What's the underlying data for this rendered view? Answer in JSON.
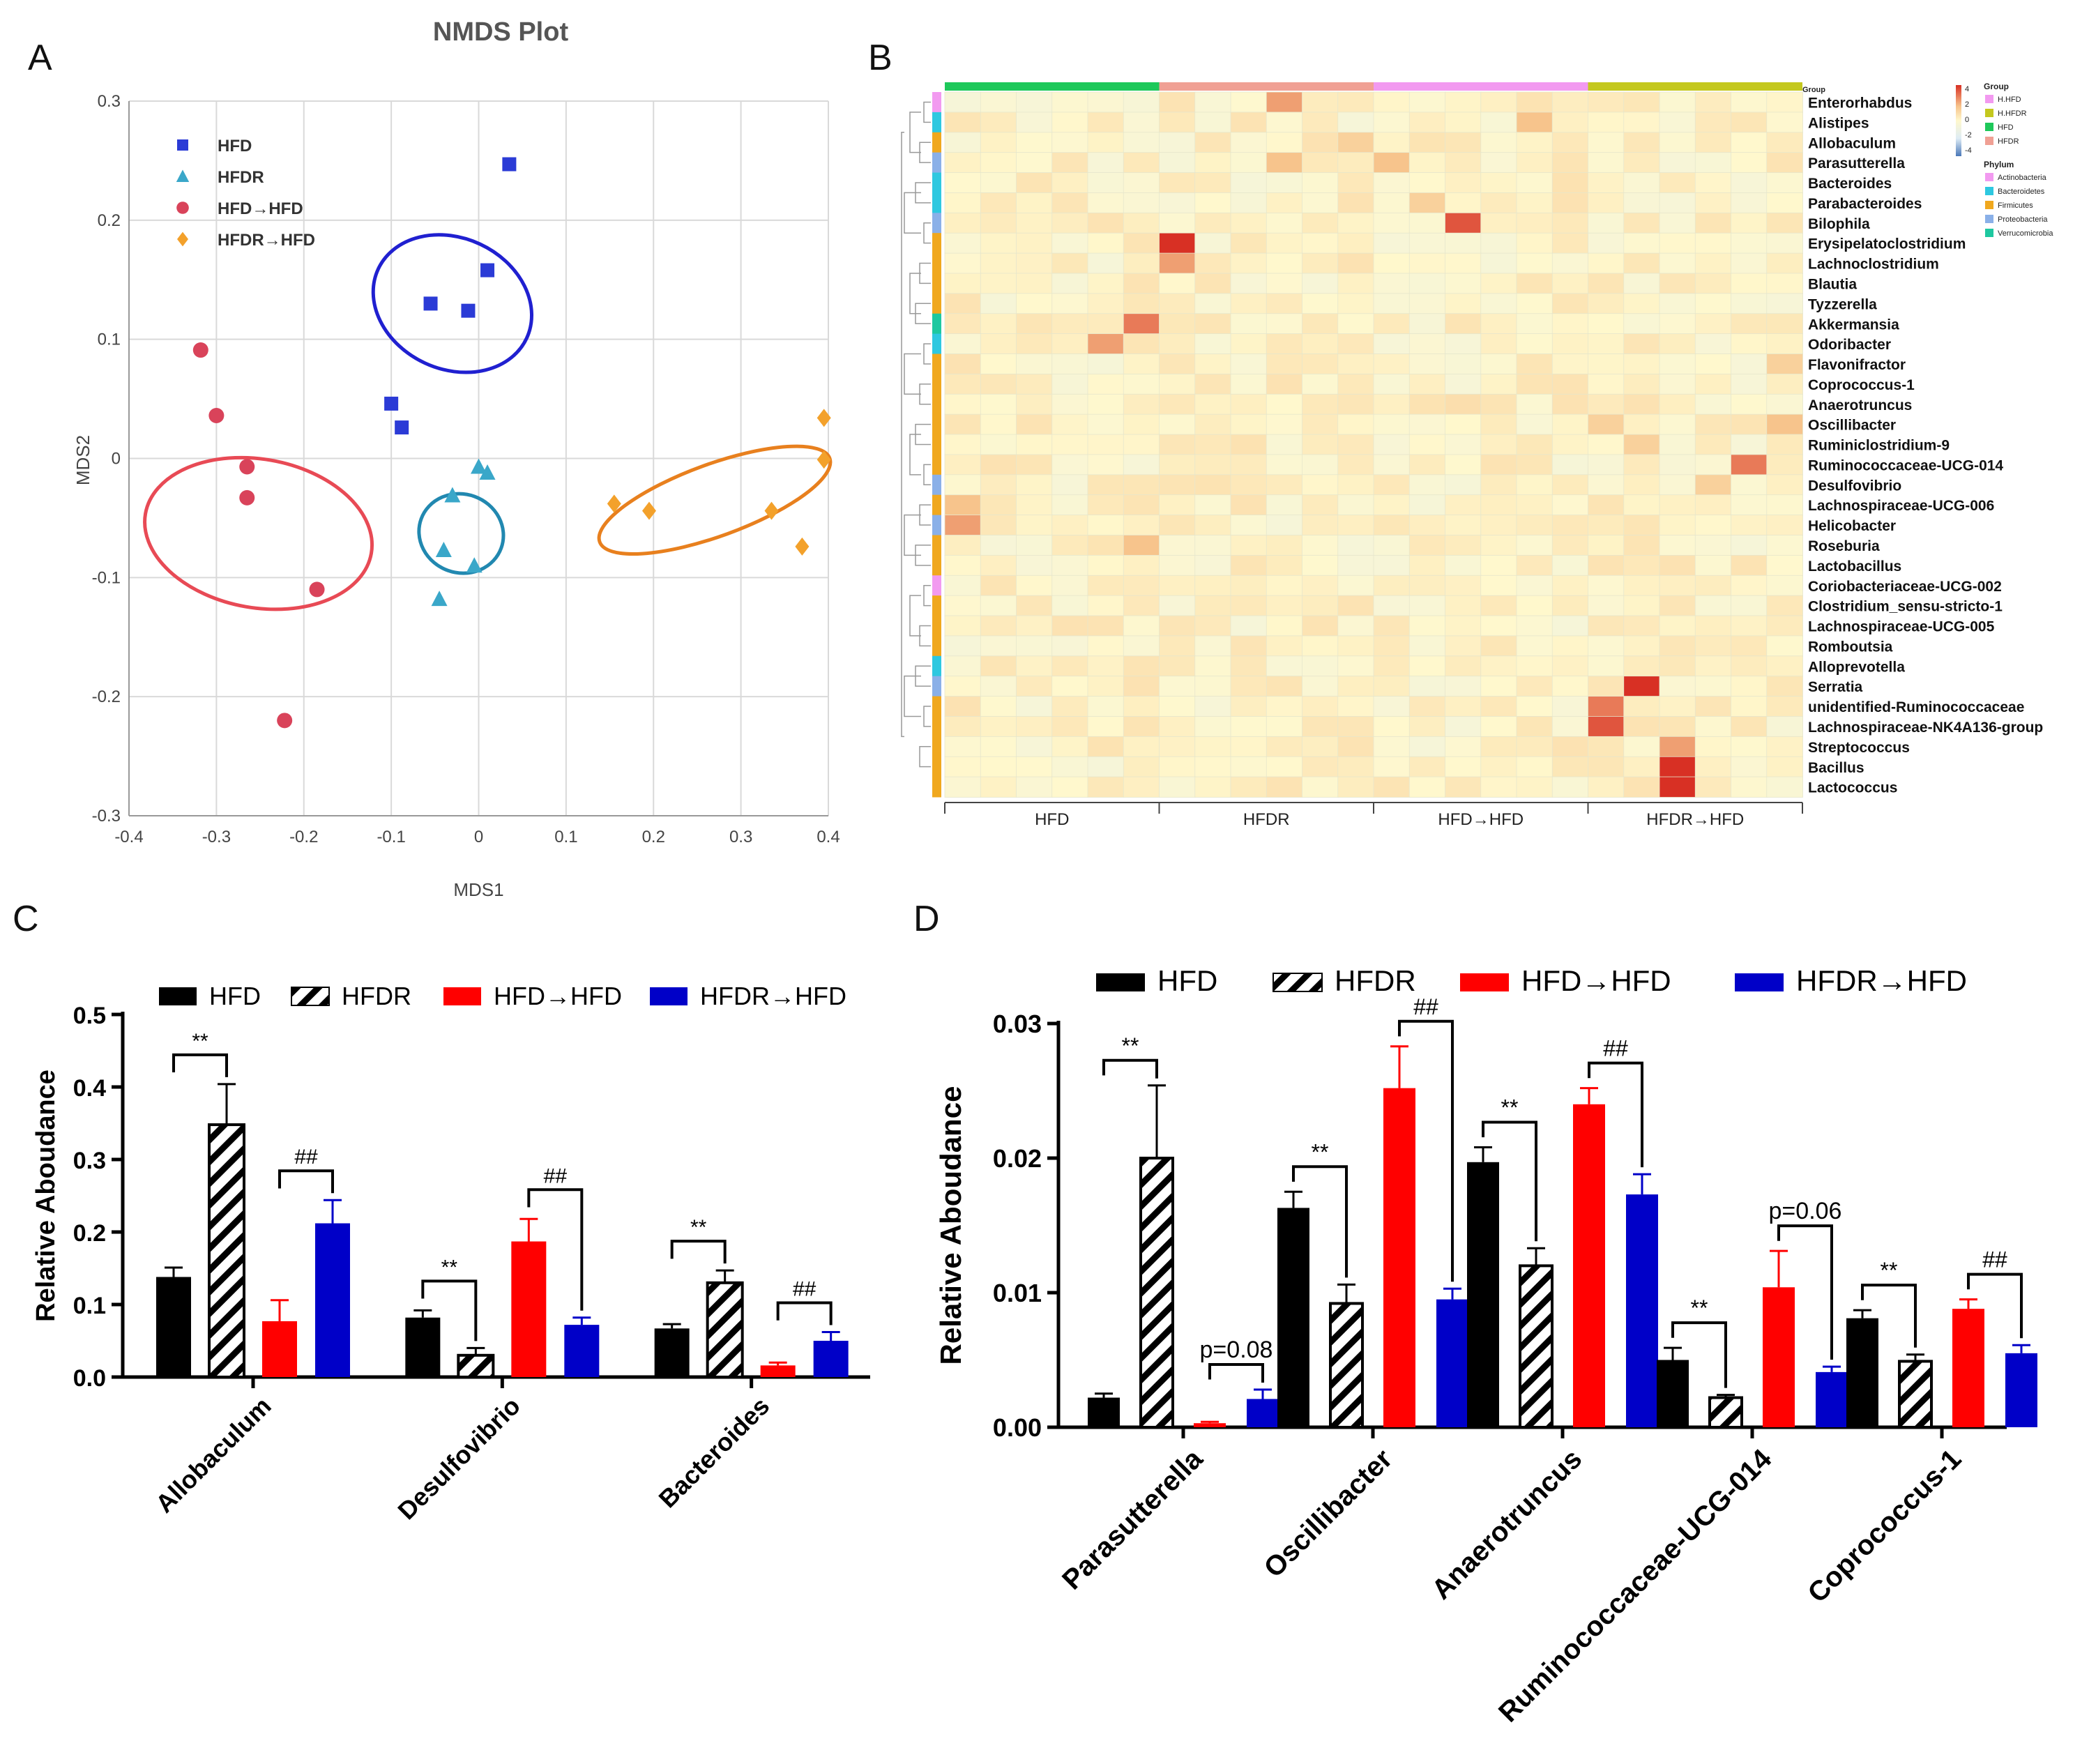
{
  "panels": {
    "A": "A",
    "B": "B",
    "C": "C",
    "D": "D"
  },
  "colors": {
    "HFD": "#000000",
    "HFDR": "#000000",
    "HFD_to_HFD": "#ff0000",
    "HFDR_to_HFD": "#0000c8",
    "nmds_HFD": "#2b3bd6",
    "nmds_HFDR": "#3aa7c9",
    "nmds_HFD_HFD": "#d9435a",
    "nmds_HFDR_HFD": "#f3a12b",
    "grid": "#d9d9d9"
  },
  "chart_data": [
    {
      "id": "A",
      "type": "scatter",
      "title": "NMDS Plot",
      "xlabel": "MDS1",
      "ylabel": "MDS2",
      "xlim": [
        -0.4,
        0.4
      ],
      "ylim": [
        -0.3,
        0.3
      ],
      "xticks": [
        "-0.4",
        "-0.3",
        "-0.2",
        "-0.1",
        "0",
        "0.1",
        "0.2",
        "0.3",
        "0.4"
      ],
      "yticks": [
        "0.3",
        "0.2",
        "0.1",
        "0",
        "-0.1",
        "-0.2",
        "-0.3"
      ],
      "legend": [
        "HFD",
        "HFDR",
        "HFD→HFD",
        "HFDR→HFD"
      ],
      "series": [
        {
          "name": "HFD",
          "marker": "square",
          "points": [
            [
              0.035,
              0.247
            ],
            [
              0.01,
              0.158
            ],
            [
              -0.055,
              0.13
            ],
            [
              -0.012,
              0.124
            ],
            [
              -0.1,
              0.046
            ],
            [
              -0.088,
              0.026
            ]
          ],
          "ellipse": {
            "cx": -0.03,
            "cy": 0.13,
            "rx": 0.075,
            "ry": 0.125,
            "angle": -65
          }
        },
        {
          "name": "HFDR",
          "marker": "triangle",
          "points": [
            [
              0.0,
              -0.007
            ],
            [
              0.01,
              -0.012
            ],
            [
              -0.03,
              -0.031
            ],
            [
              -0.04,
              -0.077
            ],
            [
              -0.005,
              -0.09
            ],
            [
              -0.045,
              -0.118
            ]
          ],
          "ellipse": {
            "cx": -0.02,
            "cy": -0.063,
            "rx": 0.045,
            "ry": 0.065,
            "angle": -70
          }
        },
        {
          "name": "HFD→HFD",
          "marker": "circle",
          "points": [
            [
              -0.318,
              0.091
            ],
            [
              -0.3,
              0.036
            ],
            [
              -0.265,
              -0.007
            ],
            [
              -0.265,
              -0.033
            ],
            [
              -0.185,
              -0.11
            ],
            [
              -0.222,
              -0.22
            ]
          ],
          "ellipse": {
            "cx": -0.252,
            "cy": -0.063,
            "rx": 0.085,
            "ry": 0.175,
            "angle": -80
          }
        },
        {
          "name": "HFDR→HFD",
          "marker": "diamond",
          "points": [
            [
              0.395,
              0.034
            ],
            [
              0.395,
              -0.001
            ],
            [
              0.155,
              -0.038
            ],
            [
              0.195,
              -0.044
            ],
            [
              0.335,
              -0.044
            ],
            [
              0.37,
              -0.074
            ]
          ],
          "ellipse": {
            "cx": 0.27,
            "cy": -0.035,
            "rx": 0.14,
            "ry": 0.055,
            "angle": -20
          }
        }
      ]
    },
    {
      "id": "B",
      "type": "heatmap",
      "columns_per_group": 6,
      "groups": [
        "HFD",
        "HFDR",
        "HFD→HFD",
        "HFDR→HFD"
      ],
      "group_colors": [
        "#1ec85a",
        "#f0a094",
        "#f29af0",
        "#c4c81e"
      ],
      "rows": [
        "Enterorhabdus",
        "Alistipes",
        "Allobaculum",
        "Parasutterella",
        "Bacteroides",
        "Parabacteroides",
        "Bilophila",
        "Erysipelatoclostridium",
        "Lachnoclostridium",
        "Blautia",
        "Tyzzerella",
        "Akkermansia",
        "Odoribacter",
        "Flavonifractor",
        "Coprococcus-1",
        "Anaerotruncus",
        "Oscillibacter",
        "Ruminiclostridium-9",
        "Ruminococcaceae-UCG-014",
        "Desulfovibrio",
        "Lachnospiraceae-UCG-006",
        "Helicobacter",
        "Roseburia",
        "Lactobacillus",
        "Coriobacteriaceae-UCG-002",
        "Clostridium_sensu-stricto-1",
        "Lachnospiraceae-UCG-005",
        "Romboutsia",
        "Alloprevotella",
        "Serratia",
        "unidentified-Ruminococcaceae",
        "Lachnospiraceae-NK4A136-group",
        "Streptococcus",
        "Bacillus",
        "Lactococcus"
      ],
      "row_phylum": [
        0,
        1,
        2,
        3,
        1,
        1,
        3,
        2,
        2,
        2,
        2,
        4,
        1,
        2,
        2,
        2,
        2,
        2,
        2,
        3,
        2,
        3,
        2,
        2,
        0,
        2,
        2,
        2,
        1,
        3,
        2,
        2,
        2,
        2,
        2
      ],
      "hot_cells": [
        [
          0,
          9,
          2.5
        ],
        [
          1,
          16,
          2
        ],
        [
          2,
          11,
          1.5
        ],
        [
          3,
          9,
          2
        ],
        [
          3,
          12,
          2
        ],
        [
          5,
          13,
          1.5
        ],
        [
          6,
          14,
          3.5
        ],
        [
          7,
          6,
          4
        ],
        [
          8,
          6,
          2.5
        ],
        [
          11,
          5,
          3
        ],
        [
          12,
          4,
          2.5
        ],
        [
          13,
          23,
          1.5
        ],
        [
          15,
          14,
          1
        ],
        [
          16,
          18,
          1.5
        ],
        [
          16,
          23,
          2
        ],
        [
          17,
          19,
          1.5
        ],
        [
          18,
          22,
          3
        ],
        [
          19,
          21,
          1.5
        ],
        [
          20,
          0,
          2
        ],
        [
          21,
          0,
          2.5
        ],
        [
          22,
          5,
          2
        ],
        [
          23,
          24,
          3
        ],
        [
          24,
          30,
          3
        ],
        [
          25,
          31,
          3.5
        ],
        [
          26,
          25,
          3
        ],
        [
          27,
          25,
          3
        ],
        [
          28,
          26,
          3
        ],
        [
          28,
          27,
          2.5
        ],
        [
          29,
          19,
          4
        ],
        [
          30,
          18,
          3
        ],
        [
          31,
          18,
          3.5
        ],
        [
          32,
          20,
          2.5
        ],
        [
          33,
          20,
          4
        ],
        [
          34,
          20,
          4
        ]
      ],
      "legend": {
        "scale_ticks": [
          "4",
          "2",
          "0",
          "-2",
          "-4"
        ],
        "group_title": "Group",
        "groups": [
          "H.HFD",
          "H.HFDR",
          "HFD",
          "HFDR"
        ],
        "group_colors": [
          "#f29af0",
          "#c4c81e",
          "#1ec85a",
          "#f0a094"
        ],
        "phylum_title": "Phylum",
        "phyla": [
          "Actinobacteria",
          "Bacteroidetes",
          "Firmicutes",
          "Proteobacteria",
          "Verrucomicrobia"
        ],
        "phylum_colors": [
          "#f29af0",
          "#2ec8e0",
          "#f0a81e",
          "#8ab0e8",
          "#1ec8a0"
        ],
        "corner_label": "Group"
      }
    },
    {
      "id": "C",
      "type": "bar",
      "ylabel": "Relative Aboudance",
      "ylim": [
        0,
        0.5
      ],
      "yticks": [
        "0.0",
        "0.1",
        "0.2",
        "0.3",
        "0.4",
        "0.5"
      ],
      "categories": [
        "Allobaculum",
        "Desulfovibrio",
        "Bacteroides"
      ],
      "series": [
        {
          "name": "HFD",
          "values": [
            0.138,
            0.082,
            0.067
          ],
          "errors": [
            0.013,
            0.01,
            0.006
          ]
        },
        {
          "name": "HFDR",
          "values": [
            0.348,
            0.03,
            0.13
          ],
          "errors": [
            0.056,
            0.01,
            0.017
          ]
        },
        {
          "name": "HFD→HFD",
          "values": [
            0.077,
            0.187,
            0.016
          ],
          "errors": [
            0.029,
            0.031,
            0.004
          ]
        },
        {
          "name": "HFDR→HFD",
          "values": [
            0.212,
            0.072,
            0.05
          ],
          "errors": [
            0.032,
            0.01,
            0.012
          ]
        }
      ],
      "annotations": [
        {
          "group": 0,
          "pair": "left",
          "label": "**"
        },
        {
          "group": 0,
          "pair": "right",
          "label": "##"
        },
        {
          "group": 1,
          "pair": "left",
          "label": "**"
        },
        {
          "group": 1,
          "pair": "right",
          "label": "##"
        },
        {
          "group": 2,
          "pair": "left",
          "label": "**"
        },
        {
          "group": 2,
          "pair": "right",
          "label": "##"
        }
      ]
    },
    {
      "id": "D",
      "type": "bar",
      "ylabel": "Relative Aboudance",
      "ylim": [
        0,
        0.03
      ],
      "yticks": [
        "0.00",
        "0.01",
        "0.02",
        "0.03"
      ],
      "categories": [
        "Parasutterella",
        "Oscillibacter",
        "Anaerotruncus",
        "Ruminococcaceae-UCG-014",
        "Coprococcus-1"
      ],
      "series": [
        {
          "name": "HFD",
          "values": [
            0.0022,
            0.0163,
            0.0197,
            0.005,
            0.0081
          ],
          "errors": [
            0.0003,
            0.0012,
            0.0011,
            0.0009,
            0.0006
          ]
        },
        {
          "name": "HFDR",
          "values": [
            0.02,
            0.0092,
            0.012,
            0.0022,
            0.0049
          ],
          "errors": [
            0.0054,
            0.0014,
            0.0013,
            0.0002,
            0.0005
          ]
        },
        {
          "name": "HFD→HFD",
          "values": [
            0.0003,
            0.0252,
            0.024,
            0.0104,
            0.0088
          ],
          "errors": [
            0.0001,
            0.0031,
            0.0012,
            0.0027,
            0.0007
          ]
        },
        {
          "name": "HFDR→HFD",
          "values": [
            0.0021,
            0.0095,
            0.0173,
            0.0041,
            0.0055
          ],
          "errors": [
            0.0007,
            0.0008,
            0.0015,
            0.0004,
            0.0006
          ]
        }
      ],
      "annotations": [
        {
          "group": 0,
          "pair": "left",
          "label": "**"
        },
        {
          "group": 0,
          "pair": "right",
          "label": "p=0.08"
        },
        {
          "group": 1,
          "pair": "left",
          "label": "**"
        },
        {
          "group": 1,
          "pair": "right",
          "label": "##"
        },
        {
          "group": 2,
          "pair": "left",
          "label": "**"
        },
        {
          "group": 2,
          "pair": "right",
          "label": "##"
        },
        {
          "group": 3,
          "pair": "left",
          "label": "**"
        },
        {
          "group": 3,
          "pair": "right",
          "label": "p=0.06"
        },
        {
          "group": 4,
          "pair": "left",
          "label": "**"
        },
        {
          "group": 4,
          "pair": "right",
          "label": "##"
        }
      ]
    }
  ]
}
